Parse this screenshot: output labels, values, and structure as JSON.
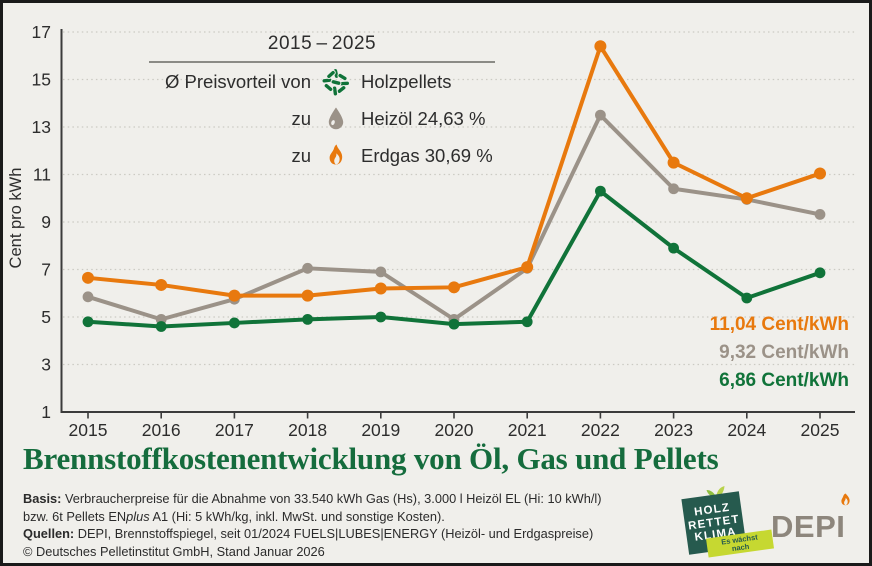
{
  "colors": {
    "background": "#f0efeb",
    "border": "#1a1a1a",
    "axis": "#3b3b3b",
    "text": "#2d2d2d",
    "grid": "#cbcac3",
    "erdgas_orange": "#e8790e",
    "heizoel_gray": "#9b9288",
    "pellets_green": "#107339",
    "title_green": "#156c3d",
    "hrk_teal": "#265a4e",
    "hrk_lime": "#c6d831",
    "depi_gray": "#8d867c"
  },
  "chart_data": {
    "type": "line",
    "x": [
      2015,
      2016,
      2017,
      2018,
      2019,
      2020,
      2021,
      2022,
      2023,
      2024,
      2025
    ],
    "series": [
      {
        "name": "Erdgas",
        "color_key": "erdgas_orange",
        "values": [
          6.65,
          6.35,
          5.9,
          5.9,
          6.2,
          6.25,
          7.1,
          16.4,
          11.5,
          10.0,
          11.04
        ]
      },
      {
        "name": "Heizöl",
        "color_key": "heizoel_gray",
        "values": [
          5.85,
          4.9,
          5.75,
          7.05,
          6.9,
          4.9,
          7.05,
          13.5,
          10.4,
          9.95,
          9.32
        ]
      },
      {
        "name": "Holzpellets",
        "color_key": "pellets_green",
        "values": [
          4.8,
          4.6,
          4.75,
          4.9,
          5.0,
          4.7,
          4.8,
          10.3,
          7.9,
          5.8,
          6.86
        ]
      }
    ],
    "ylabel": "Cent pro kWh",
    "ylim": [
      1,
      17
    ],
    "yticks": [
      1,
      3,
      5,
      7,
      9,
      11,
      13,
      15,
      17
    ],
    "grid": "horizontal dotted at each ytick",
    "legend_position": "top-left inside plot",
    "end_labels": [
      {
        "text": "11,04 Cent/kWh",
        "color_key": "erdgas_orange"
      },
      {
        "text": "9,32 Cent/kWh",
        "color_key": "heizoel_gray"
      },
      {
        "text": "6,86 Cent/kWh",
        "color_key": "pellets_green"
      }
    ]
  },
  "legend": {
    "title": "2015 – 2025",
    "rows": [
      {
        "prefix": "Ø Preisvorteil von",
        "icon": "pellets-icon",
        "label": "Holzpellets"
      },
      {
        "prefix": "zu",
        "icon": "droplet-icon",
        "label": "Heizöl 24,63 %"
      },
      {
        "prefix": "zu",
        "icon": "flame-icon",
        "label": "Erdgas 30,69 %"
      }
    ]
  },
  "title": "Brennstoffkostenentwicklung von Öl, Gas und Pellets",
  "footer": {
    "basis_label": "Basis:",
    "basis_line1": " Verbraucherpreise für die Abnahme von 33.540 kWh Gas (Hs), 3.000 l Heizöl EL (Hi: 10 kWh/l)",
    "basis_line2a": "bzw. 6t Pellets EN",
    "basis_line2_italic": "plus",
    "basis_line2b": " A1 (Hi: 5 kWh/kg, inkl. MwSt. und sonstige Kosten).",
    "quellen_label": "Quellen:",
    "quellen_text": " DEPI, Brennstoffspiegel, seit 01/2024 FUELS|LUBES|ENERGY (Heizöl- und Erdgaspreise)",
    "copyright": "© Deutsches Pelletinstitut GmbH, Stand Januar 2026"
  },
  "logos": {
    "hrk": {
      "line1": "HOLZ",
      "line2": "RETTET",
      "line3": "KLIMA",
      "ribbon_line1": "Es wächst",
      "ribbon_line2": "nach"
    },
    "depi": {
      "text": "DEPI"
    }
  }
}
